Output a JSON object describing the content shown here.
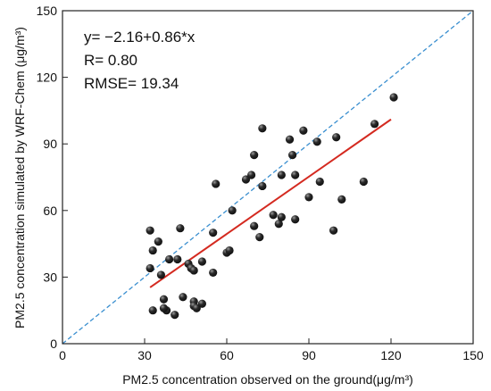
{
  "chart_data": {
    "type": "scatter",
    "title": "",
    "xlabel": "PM2.5 concentration observed on the ground(μg/m³)",
    "ylabel": "PM2.5 concentration simulated by WRF-Chem (μg/m³)",
    "xlim": [
      0,
      150
    ],
    "ylim": [
      0,
      150
    ],
    "xticks": [
      0,
      30,
      60,
      90,
      120,
      150
    ],
    "yticks": [
      0,
      30,
      60,
      90,
      120,
      150
    ],
    "grid": false,
    "annotations": [
      "y= −2.16+0.86*x",
      "R= 0.80",
      "RMSE= 19.34"
    ],
    "regression": {
      "intercept": -2.16,
      "slope": 0.86,
      "x_range": [
        32,
        120
      ]
    },
    "reference_line": {
      "x": [
        0,
        150
      ],
      "y": [
        0,
        150
      ]
    },
    "colors": {
      "points": "#111111",
      "regression": "#d42a20",
      "reference": "#3a8fd0"
    },
    "points": [
      {
        "x": 32,
        "y": 51
      },
      {
        "x": 32,
        "y": 34
      },
      {
        "x": 33,
        "y": 15
      },
      {
        "x": 33,
        "y": 42
      },
      {
        "x": 35,
        "y": 46
      },
      {
        "x": 36,
        "y": 31
      },
      {
        "x": 37,
        "y": 20
      },
      {
        "x": 38,
        "y": 15
      },
      {
        "x": 37,
        "y": 16
      },
      {
        "x": 39,
        "y": 38
      },
      {
        "x": 41,
        "y": 13
      },
      {
        "x": 42,
        "y": 38
      },
      {
        "x": 43,
        "y": 52
      },
      {
        "x": 44,
        "y": 21
      },
      {
        "x": 46,
        "y": 36
      },
      {
        "x": 47,
        "y": 34
      },
      {
        "x": 48,
        "y": 33
      },
      {
        "x": 48,
        "y": 19
      },
      {
        "x": 48,
        "y": 17
      },
      {
        "x": 49,
        "y": 16
      },
      {
        "x": 51,
        "y": 18
      },
      {
        "x": 51,
        "y": 37
      },
      {
        "x": 55,
        "y": 32
      },
      {
        "x": 55,
        "y": 50
      },
      {
        "x": 56,
        "y": 72
      },
      {
        "x": 60,
        "y": 41
      },
      {
        "x": 61,
        "y": 42
      },
      {
        "x": 62,
        "y": 60
      },
      {
        "x": 67,
        "y": 74
      },
      {
        "x": 69,
        "y": 76
      },
      {
        "x": 70,
        "y": 85
      },
      {
        "x": 70,
        "y": 53
      },
      {
        "x": 72,
        "y": 48
      },
      {
        "x": 73,
        "y": 71
      },
      {
        "x": 73,
        "y": 97
      },
      {
        "x": 77,
        "y": 58
      },
      {
        "x": 79,
        "y": 54
      },
      {
        "x": 80,
        "y": 57
      },
      {
        "x": 80,
        "y": 76
      },
      {
        "x": 83,
        "y": 92
      },
      {
        "x": 84,
        "y": 85
      },
      {
        "x": 85,
        "y": 76
      },
      {
        "x": 85,
        "y": 56
      },
      {
        "x": 88,
        "y": 96
      },
      {
        "x": 90,
        "y": 66
      },
      {
        "x": 93,
        "y": 91
      },
      {
        "x": 94,
        "y": 73
      },
      {
        "x": 99,
        "y": 51
      },
      {
        "x": 100,
        "y": 93
      },
      {
        "x": 102,
        "y": 65
      },
      {
        "x": 110,
        "y": 73
      },
      {
        "x": 114,
        "y": 99
      },
      {
        "x": 121,
        "y": 111
      }
    ]
  }
}
